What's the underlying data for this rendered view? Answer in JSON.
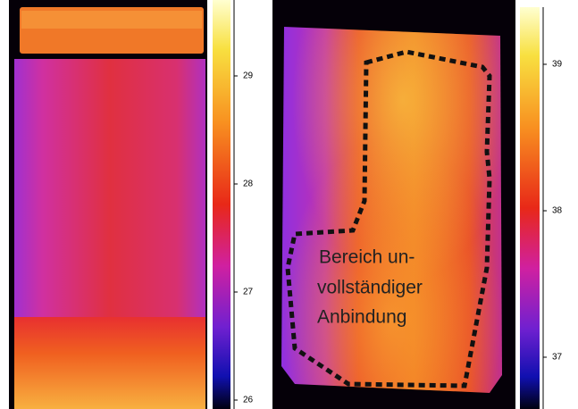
{
  "left_panel": {
    "colorbar_ticks": [
      29,
      28,
      27,
      26
    ]
  },
  "right_panel": {
    "colorbar_ticks": [
      39,
      38,
      37
    ],
    "annotation": [
      "Bereich un-",
      "vollständiger",
      "Anbindung"
    ]
  }
}
